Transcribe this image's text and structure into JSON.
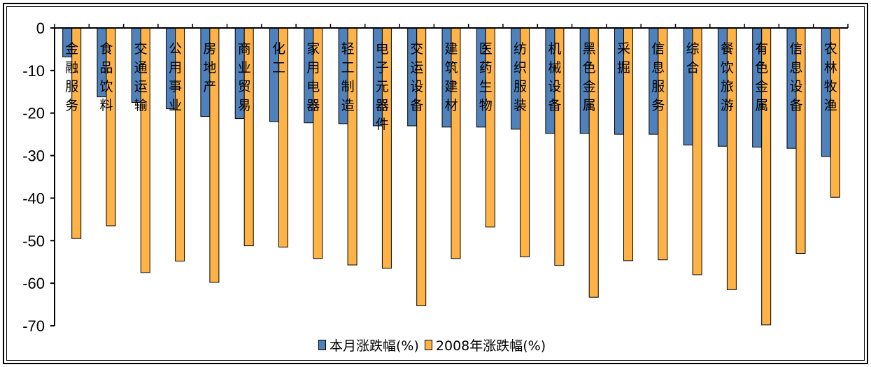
{
  "chart_data": {
    "type": "bar",
    "categories": [
      "金融服务",
      "食品饮料",
      "交通运输",
      "公用事业",
      "房地产",
      "商业贸易",
      "化工",
      "家用电器",
      "轻工制造",
      "电子元器件",
      "交运设备",
      "建筑建材",
      "医药生物",
      "纺织服装",
      "机械设备",
      "黑色金属",
      "采掘",
      "信息服务",
      "综合",
      "餐饮旅游",
      "有色金属",
      "信息设备",
      "农林牧渔"
    ],
    "series": [
      {
        "name": "本月涨跌幅(%)",
        "color": "#4f81bd",
        "values": [
          -6.8,
          -16.2,
          -17.5,
          -19,
          -20.8,
          -21.3,
          -22,
          -22.3,
          -22.5,
          -23,
          -23,
          -23.3,
          -23.3,
          -23.8,
          -24.8,
          -24.8,
          -25,
          -25,
          -27.5,
          -27.8,
          -28,
          -28.3,
          -30.2
        ]
      },
      {
        "name": "2008年涨跌幅(%)",
        "color": "#ffb347",
        "values": [
          -49.5,
          -46.5,
          -57.5,
          -54.8,
          -59.8,
          -51.2,
          -51.5,
          -54.2,
          -55.7,
          -56.5,
          -65.3,
          -54.2,
          -46.8,
          -53.8,
          -55.8,
          -63.3,
          -54.7,
          -54.5,
          -58,
          -61.5,
          -69.8,
          -53,
          -39.8
        ]
      }
    ],
    "ylim": [
      -70,
      0
    ],
    "yticks": [
      "0",
      "-10",
      "-20",
      "-30",
      "-40",
      "-50",
      "-60",
      "-70"
    ],
    "legend_position": "bottom"
  }
}
